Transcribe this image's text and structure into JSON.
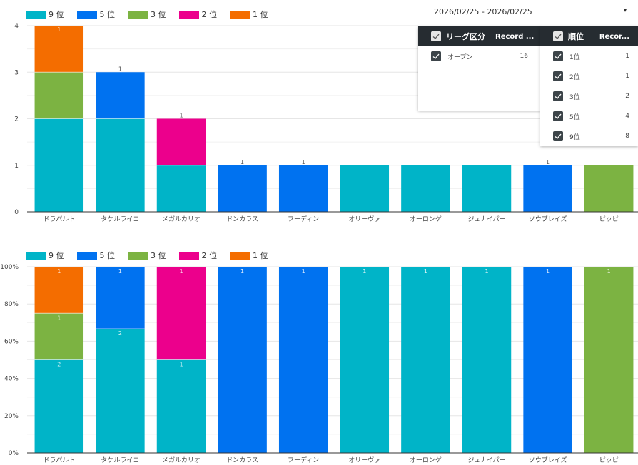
{
  "date_range": {
    "label": "2026/02/25 - 2026/02/25",
    "dropdown_icon": "caret-down-icon"
  },
  "filter_league": {
    "header": {
      "dimension": "リーグ区分",
      "metric": "Record ..."
    },
    "rows": [
      {
        "label": "オープン",
        "count": "16",
        "checked": true
      }
    ]
  },
  "filter_rank": {
    "header": {
      "dimension": "順位",
      "metric": "Recor..."
    },
    "rows": [
      {
        "label": "1位",
        "count": "1",
        "checked": true
      },
      {
        "label": "2位",
        "count": "1",
        "checked": true
      },
      {
        "label": "3位",
        "count": "2",
        "checked": true
      },
      {
        "label": "5位",
        "count": "4",
        "checked": true
      },
      {
        "label": "9位",
        "count": "8",
        "checked": true
      }
    ]
  },
  "chart_data": [
    {
      "type": "bar",
      "stacked": true,
      "title": "",
      "xlabel": "",
      "ylabel": "",
      "ylim": [
        0,
        4
      ],
      "yticks": [
        "0",
        "1",
        "2",
        "3",
        "4"
      ],
      "grid": true,
      "legend_position": "top-left",
      "categories": [
        "ドラパルト",
        "タケルライコ",
        "メガルカリオ",
        "ドンカラス",
        "フーディン",
        "オリーヴァ",
        "オーロンゲ",
        "ジュナイパー",
        "ソウブレイズ",
        "ピッピ"
      ],
      "series": [
        {
          "name": "9 位",
          "color": "#00b4c8",
          "values": [
            2,
            2,
            1,
            0,
            0,
            1,
            1,
            1,
            0,
            0
          ]
        },
        {
          "name": "5 位",
          "color": "#0072f0",
          "values": [
            0,
            1,
            0,
            1,
            1,
            0,
            0,
            0,
            1,
            0
          ]
        },
        {
          "name": "3 位",
          "color": "#7cb342",
          "values": [
            1,
            0,
            0,
            0,
            0,
            0,
            0,
            0,
            0,
            1
          ]
        },
        {
          "name": "2 位",
          "color": "#ec008c",
          "values": [
            0,
            0,
            1,
            0,
            0,
            0,
            0,
            0,
            0,
            0
          ]
        },
        {
          "name": "1 位",
          "color": "#f46d00",
          "values": [
            1,
            0,
            0,
            0,
            0,
            0,
            0,
            0,
            0,
            0
          ]
        }
      ]
    },
    {
      "type": "bar",
      "stacked": true,
      "normalized": true,
      "title": "",
      "xlabel": "",
      "ylabel": "",
      "ylim": [
        0,
        100
      ],
      "yticks": [
        "0%",
        "20%",
        "40%",
        "60%",
        "80%",
        "100%"
      ],
      "grid": true,
      "legend_position": "top-left",
      "categories": [
        "ドラパルト",
        "タケルライコ",
        "メガルカリオ",
        "ドンカラス",
        "フーディン",
        "オリーヴァ",
        "オーロンゲ",
        "ジュナイパー",
        "ソウブレイズ",
        "ピッピ"
      ],
      "series": [
        {
          "name": "9 位",
          "color": "#00b4c8",
          "values": [
            2,
            2,
            1,
            0,
            0,
            1,
            1,
            1,
            0,
            0
          ]
        },
        {
          "name": "5 位",
          "color": "#0072f0",
          "values": [
            0,
            1,
            0,
            1,
            1,
            0,
            0,
            0,
            1,
            0
          ]
        },
        {
          "name": "3 位",
          "color": "#7cb342",
          "values": [
            1,
            0,
            0,
            0,
            0,
            0,
            0,
            0,
            0,
            1
          ]
        },
        {
          "name": "2 位",
          "color": "#ec008c",
          "values": [
            0,
            0,
            1,
            0,
            0,
            0,
            0,
            0,
            0,
            0
          ]
        },
        {
          "name": "1 位",
          "color": "#f46d00",
          "values": [
            1,
            0,
            0,
            0,
            0,
            0,
            0,
            0,
            0,
            0
          ]
        }
      ]
    }
  ]
}
